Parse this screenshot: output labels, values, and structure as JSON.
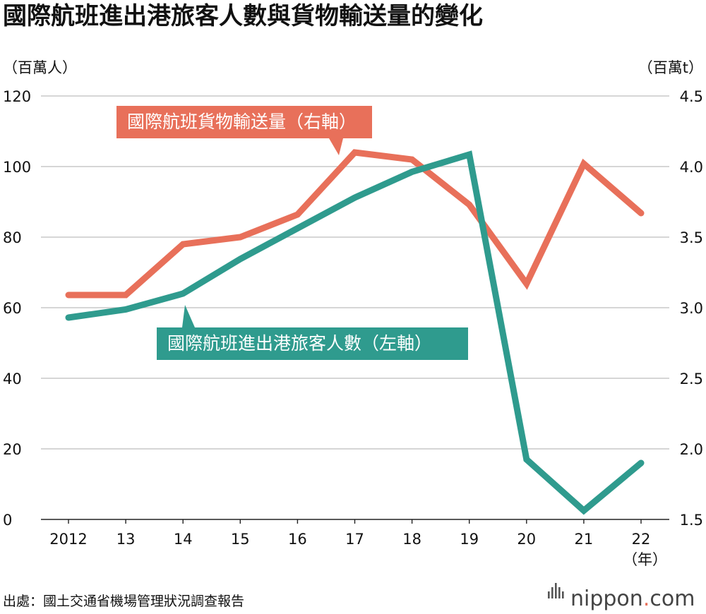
{
  "title": "國際航班進出港旅客人數與貨物輸送量的變化",
  "left_unit": "（百萬人）",
  "right_unit": "（百萬t）",
  "x_unit": "（年）",
  "source": "出處：國土交通省機場管理狀況調查報告",
  "brand": {
    "name": "nippon",
    "dot": ".",
    "suffix": "com"
  },
  "colors": {
    "cargo": "#e8705a",
    "passengers": "#2f9b8e",
    "grid": "#c8c8c8",
    "axis": "#222222",
    "brand_dot": "#e8705a"
  },
  "callouts": {
    "cargo": "國際航班貨物輸送量（右軸）",
    "passengers": "國際航班進出港旅客人數（左軸）"
  },
  "chart_data": {
    "type": "line",
    "categories": [
      "2012",
      "13",
      "14",
      "15",
      "16",
      "17",
      "18",
      "19",
      "20",
      "21",
      "22"
    ],
    "left_axis": {
      "min": 0,
      "max": 120,
      "ticks": [
        "0",
        "20",
        "40",
        "60",
        "80",
        "100",
        "120"
      ]
    },
    "right_axis": {
      "min": 1.5,
      "max": 4.5,
      "ticks": [
        "1.5",
        "2.0",
        "2.5",
        "3.0",
        "3.5",
        "4.0",
        "4.5"
      ]
    },
    "grid": true,
    "series": [
      {
        "name": "國際航班貨物輸送量（右軸）",
        "axis": "right",
        "color": "#e8705a",
        "values": [
          3.09,
          3.09,
          3.45,
          3.5,
          3.66,
          4.1,
          4.05,
          3.73,
          3.17,
          4.02,
          3.67
        ]
      },
      {
        "name": "國際航班進出港旅客人數（左軸）",
        "axis": "left",
        "color": "#2f9b8e",
        "values": [
          57.2,
          59.5,
          64,
          73.8,
          82.5,
          91.2,
          98.5,
          103.4,
          17,
          2.5,
          16
        ]
      }
    ]
  }
}
